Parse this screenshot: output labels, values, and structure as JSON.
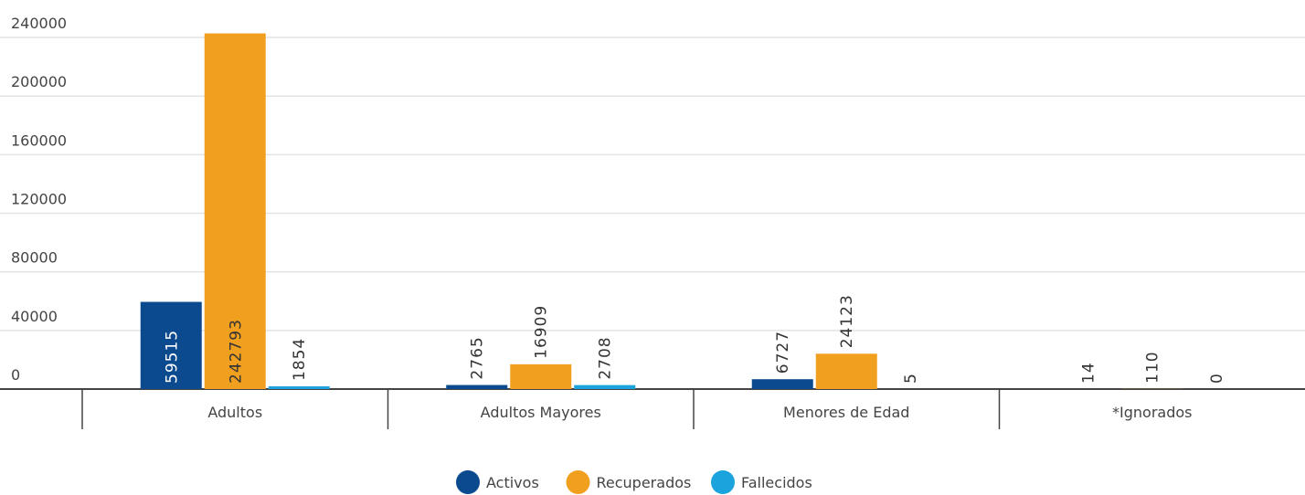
{
  "chart_data": {
    "type": "bar",
    "categories": [
      "Adultos",
      "Adultos Mayores",
      "Menores de Edad",
      "*Ignorados"
    ],
    "series": [
      {
        "name": "Activos",
        "color": "#0b4a8f",
        "values": [
          59515,
          2765,
          6727,
          14
        ]
      },
      {
        "name": "Recuperados",
        "color": "#f0a01e",
        "values": [
          242793,
          16909,
          24123,
          110
        ]
      },
      {
        "name": "Fallecidos",
        "color": "#1aa3dc",
        "values": [
          1854,
          2708,
          5,
          0
        ]
      }
    ],
    "ylim": [
      0,
      250000
    ],
    "yticks": [
      0,
      40000,
      80000,
      120000,
      160000,
      200000,
      240000
    ],
    "grid": true,
    "legend": "bottom"
  }
}
